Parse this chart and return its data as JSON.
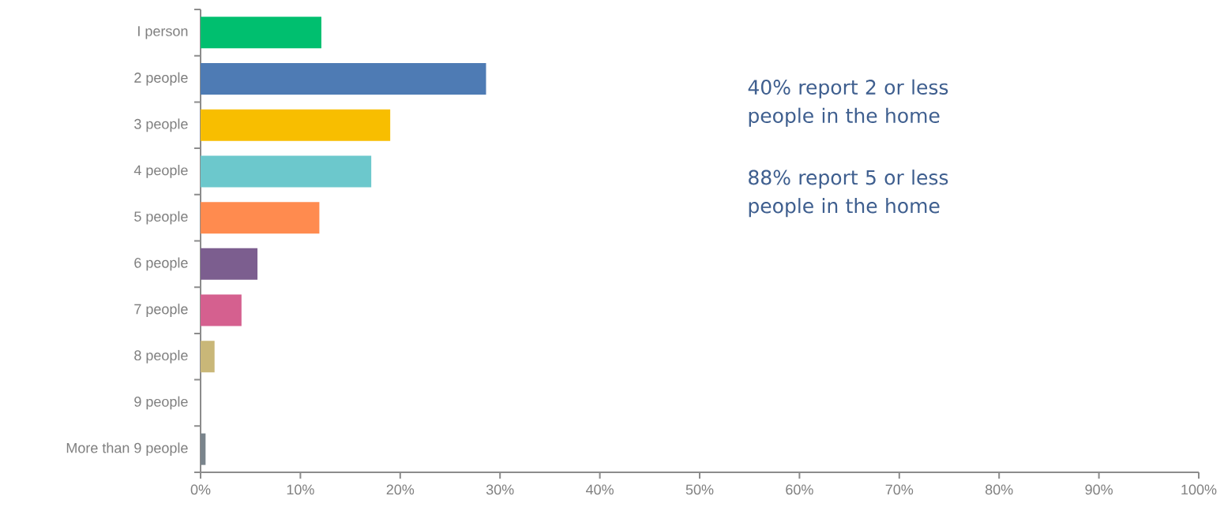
{
  "chart_data": {
    "type": "bar",
    "orientation": "horizontal",
    "categories": [
      "I person",
      "2 people",
      "3 people",
      "4 people",
      "5 people",
      "6 people",
      "7 people",
      "8 people",
      "9 people",
      "More than 9 people"
    ],
    "values": [
      12.1,
      28.6,
      19.0,
      17.1,
      11.9,
      5.7,
      4.1,
      1.4,
      0,
      0.5
    ],
    "colors": [
      "#00bf6f",
      "#4e7bb4",
      "#f8be00",
      "#6cc8cc",
      "#ff8b4f",
      "#7c5e8f",
      "#d5608f",
      "#c9b778",
      "#ffffff",
      "#7a848c"
    ],
    "xlim": [
      0,
      100
    ],
    "xticks": [
      {
        "value": 0,
        "label": "0%"
      },
      {
        "value": 10,
        "label": "10%"
      },
      {
        "value": 20,
        "label": "20%"
      },
      {
        "value": 30,
        "label": "30%"
      },
      {
        "value": 40,
        "label": "40%"
      },
      {
        "value": 50,
        "label": "50%"
      },
      {
        "value": 60,
        "label": "60%"
      },
      {
        "value": 70,
        "label": "70%"
      },
      {
        "value": 80,
        "label": "80%"
      },
      {
        "value": 90,
        "label": "90%"
      },
      {
        "value": 100,
        "label": "100%"
      }
    ],
    "annotations": [
      "40% report 2 or less people in the home",
      "88% report 5 or less people in the home"
    ]
  }
}
